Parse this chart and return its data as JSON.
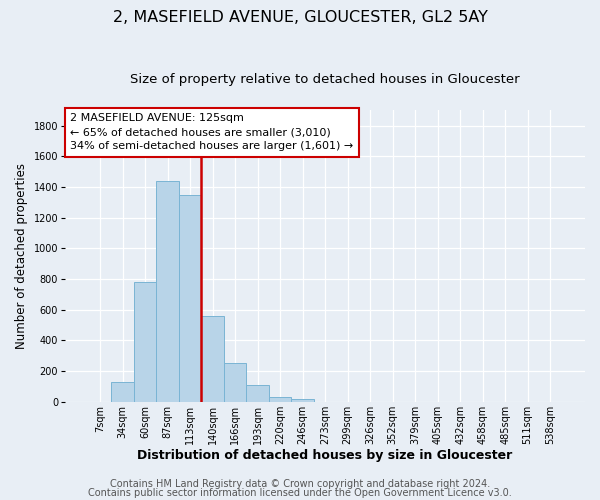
{
  "title": "2, MASEFIELD AVENUE, GLOUCESTER, GL2 5AY",
  "subtitle": "Size of property relative to detached houses in Gloucester",
  "xlabel": "Distribution of detached houses by size in Gloucester",
  "ylabel": "Number of detached properties",
  "bin_labels": [
    "7sqm",
    "34sqm",
    "60sqm",
    "87sqm",
    "113sqm",
    "140sqm",
    "166sqm",
    "193sqm",
    "220sqm",
    "246sqm",
    "273sqm",
    "299sqm",
    "326sqm",
    "352sqm",
    "379sqm",
    "405sqm",
    "432sqm",
    "458sqm",
    "485sqm",
    "511sqm",
    "538sqm"
  ],
  "bar_values": [
    0,
    130,
    780,
    1440,
    1350,
    560,
    250,
    110,
    30,
    20,
    0,
    0,
    0,
    0,
    0,
    0,
    0,
    0,
    0,
    0,
    0
  ],
  "bar_color": "#b8d4e8",
  "bar_edge_color": "#7ab4d4",
  "vline_x_index": 4.5,
  "vline_color": "#cc0000",
  "annotation_line1": "2 MASEFIELD AVENUE: 125sqm",
  "annotation_line2": "← 65% of detached houses are smaller (3,010)",
  "annotation_line3": "34% of semi-detached houses are larger (1,601) →",
  "annotation_box_color": "#ffffff",
  "annotation_box_edge": "#cc0000",
  "ylim": [
    0,
    1900
  ],
  "yticks": [
    0,
    200,
    400,
    600,
    800,
    1000,
    1200,
    1400,
    1600,
    1800
  ],
  "footer_line1": "Contains HM Land Registry data © Crown copyright and database right 2024.",
  "footer_line2": "Contains public sector information licensed under the Open Government Licence v3.0.",
  "bg_color": "#e8eef5",
  "plot_bg_color": "#e8eef5",
  "title_fontsize": 11.5,
  "subtitle_fontsize": 9.5,
  "xlabel_fontsize": 9,
  "ylabel_fontsize": 8.5,
  "tick_fontsize": 7,
  "annotation_fontsize": 8,
  "footer_fontsize": 7
}
